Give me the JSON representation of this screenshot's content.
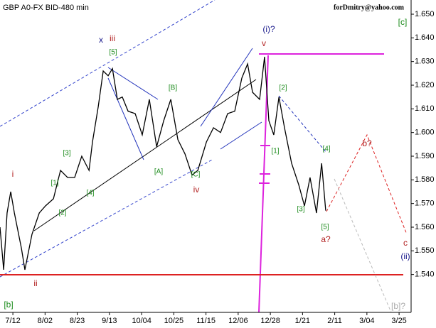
{
  "chart_data": {
    "type": "line",
    "title": "GBP A0-FX BID-480 min",
    "subtitle": "forDmitry@yahoo.com",
    "series": [
      {
        "name": "GBP A0-FX",
        "color": "#000000",
        "x": [
          -6.0,
          -4.3,
          -2.7,
          -1.0,
          0.7,
          4.0,
          5.6,
          8.9,
          12.3,
          15.2,
          18.9,
          22.2,
          25.5,
          28.8,
          32.1,
          35.5,
          37.1,
          39.8,
          42.1,
          44.4,
          46.4,
          48.7,
          51.0,
          53.7,
          57.0,
          60.3,
          63.6,
          67.0,
          70.3,
          73.6,
          76.9,
          80.2,
          83.5,
          86.2,
          90.2,
          93.5,
          96.8,
          100.1,
          103.4,
          106.7,
          109.4,
          111.7,
          115.0,
          117.3,
          119.3,
          121.6,
          124.0,
          126.6,
          129.9,
          133.2,
          135.9,
          138.5,
          141.5,
          143.9,
          145.8
        ],
        "values": [
          1.56,
          1.542,
          1.566,
          1.575,
          1.566,
          1.551,
          1.542,
          1.557,
          1.566,
          1.569,
          1.572,
          1.584,
          1.581,
          1.581,
          1.59,
          1.584,
          1.596,
          1.611,
          1.626,
          1.624,
          1.627,
          1.614,
          1.615,
          1.609,
          1.608,
          1.599,
          1.614,
          1.594,
          1.605,
          1.614,
          1.597,
          1.591,
          1.582,
          1.584,
          1.596,
          1.602,
          1.6,
          1.608,
          1.609,
          1.623,
          1.629,
          1.617,
          1.614,
          1.632,
          1.605,
          1.599,
          1.615,
          1.602,
          1.587,
          1.578,
          1.569,
          1.581,
          1.566,
          1.587,
          1.567
        ]
      }
    ],
    "xlim": [
      -6.0,
      185.6
    ],
    "xticks": [
      {
        "value": 0,
        "label": "7/12"
      },
      {
        "value": 15,
        "label": "8/02"
      },
      {
        "value": 30,
        "label": "8/23"
      },
      {
        "value": 45,
        "label": "9/13"
      },
      {
        "value": 60,
        "label": "10/04"
      },
      {
        "value": 75,
        "label": "10/25"
      },
      {
        "value": 90,
        "label": "11/15"
      },
      {
        "value": 105,
        "label": "12/06"
      },
      {
        "value": 120,
        "label": "12/28"
      },
      {
        "value": 135,
        "label": "1/21"
      },
      {
        "value": 150,
        "label": "2/11"
      },
      {
        "value": 165,
        "label": "3/04"
      },
      {
        "value": 180,
        "label": "3/25"
      }
    ],
    "ylim": [
      1.524,
      1.656
    ],
    "yticks": [
      {
        "value": 1.54,
        "label": "1.540"
      },
      {
        "value": 1.55,
        "label": "1.550"
      },
      {
        "value": 1.56,
        "label": "1.560"
      },
      {
        "value": 1.57,
        "label": "1.570"
      },
      {
        "value": 1.58,
        "label": "1.580"
      },
      {
        "value": 1.59,
        "label": "1.590"
      },
      {
        "value": 1.6,
        "label": "1.600"
      },
      {
        "value": 1.61,
        "label": "1.610"
      },
      {
        "value": 1.62,
        "label": "1.620"
      },
      {
        "value": 1.63,
        "label": "1.630"
      },
      {
        "value": 1.64,
        "label": "1.640"
      },
      {
        "value": 1.65,
        "label": "1.650"
      }
    ],
    "grid": false,
    "annotations": [
      {
        "text": "i",
        "color": "#b22222"
      },
      {
        "text": "ii",
        "color": "#b22222"
      },
      {
        "text": "[1]",
        "color": "#1e8c1e"
      },
      {
        "text": "[2]",
        "color": "#1e8c1e"
      },
      {
        "text": "[3]",
        "color": "#1e8c1e"
      },
      {
        "text": "[4]",
        "color": "#1e8c1e"
      },
      {
        "text": "[5]",
        "color": "#1e8c1e"
      },
      {
        "text": "x",
        "color": "#1a1a8c"
      },
      {
        "text": "iii",
        "color": "#b22222"
      },
      {
        "text": "[A]",
        "color": "#1e8c1e"
      },
      {
        "text": "[B]",
        "color": "#1e8c1e"
      },
      {
        "text": "[C]",
        "color": "#1e8c1e"
      },
      {
        "text": "iv",
        "color": "#b22222"
      },
      {
        "text": "v",
        "color": "#b22222"
      },
      {
        "text": "(i)?",
        "color": "#1a1a8c"
      },
      {
        "text": "[2]",
        "color": "#1e8c1e"
      },
      {
        "text": "[1]",
        "color": "#1e8c1e"
      },
      {
        "text": "[3]",
        "color": "#1e8c1e"
      },
      {
        "text": "[4]",
        "color": "#1e8c1e"
      },
      {
        "text": "[5]",
        "color": "#1e8c1e"
      },
      {
        "text": "a?",
        "color": "#b22222"
      },
      {
        "text": "b?",
        "color": "#b22222"
      },
      {
        "text": "c",
        "color": "#b22222"
      },
      {
        "text": "(ii)",
        "color": "#1a1a8c"
      },
      {
        "text": "[c]",
        "color": "#1e8c1e"
      },
      {
        "text": "[b]",
        "color": "#1e8c1e"
      },
      {
        "text": "[b]?",
        "color": "#aaaaaa"
      }
    ]
  }
}
